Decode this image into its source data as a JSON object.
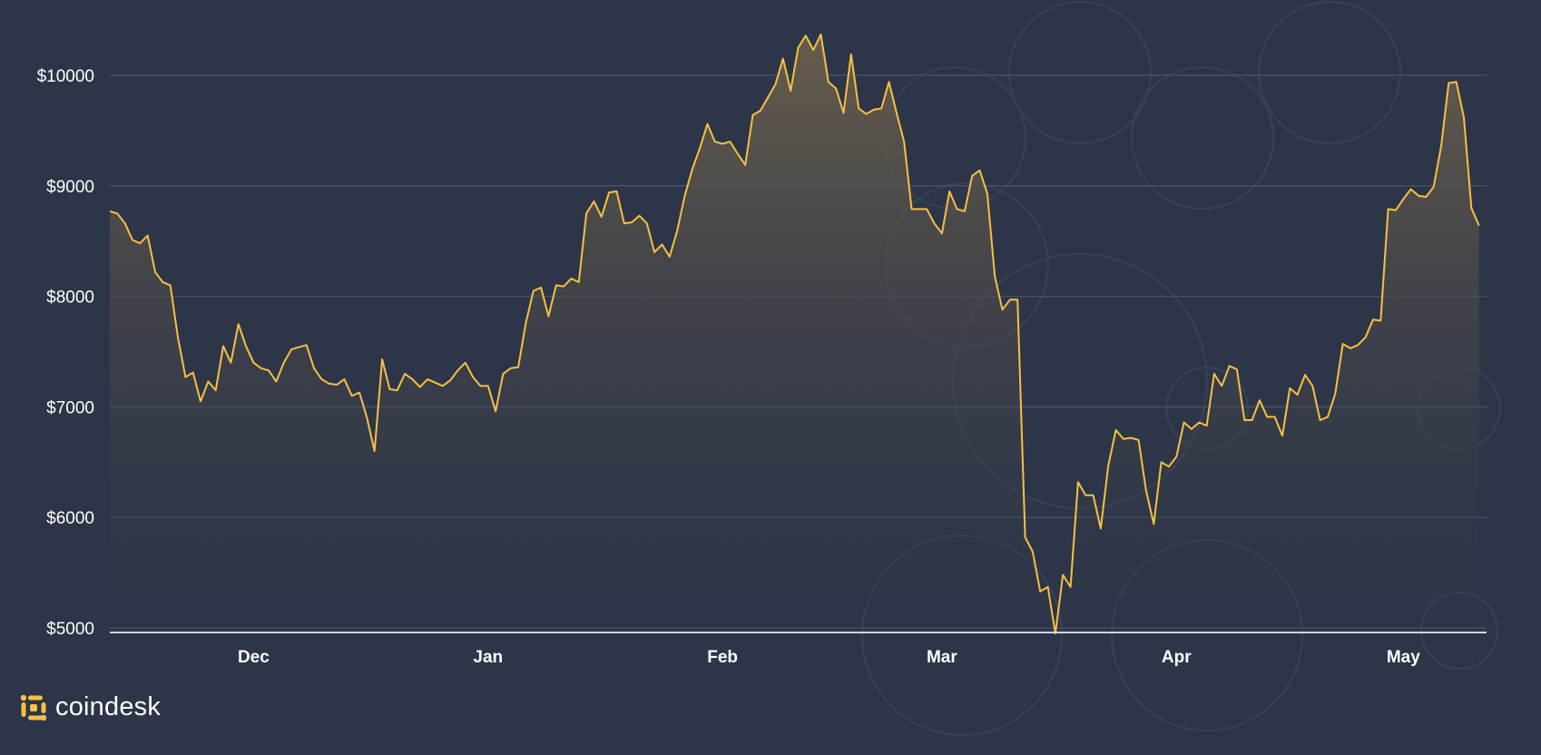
{
  "brand": {
    "name": "coindesk",
    "accent": "#f7c042"
  },
  "colors": {
    "background": "#2d3548",
    "line": "#f7c042",
    "grid": "#465066",
    "axis": "#d0d4dc"
  },
  "chart_data": {
    "type": "area",
    "title": "",
    "xlabel": "",
    "ylabel": "",
    "ylim": [
      5000,
      10400
    ],
    "yticks": [
      10000,
      9000,
      8000,
      7000,
      6000,
      5000
    ],
    "ytick_labels": [
      "$10000",
      "$9000",
      "$8000",
      "$7000",
      "$6000",
      "$5000"
    ],
    "xlim": [
      "2019-11-12",
      "2020-05-12"
    ],
    "xticks": [
      "2019-12-01",
      "2020-01-01",
      "2020-02-01",
      "2020-03-01",
      "2020-04-01",
      "2020-05-01"
    ],
    "xtick_labels": [
      "Dec",
      "Jan",
      "Feb",
      "Mar",
      "Apr",
      "May"
    ],
    "grid": true,
    "series": [
      {
        "start_date": "2019-11-12",
        "values": [
          8770,
          8750,
          8660,
          8510,
          8480,
          8550,
          8220,
          8130,
          8100,
          7630,
          7270,
          7310,
          7050,
          7230,
          7150,
          7550,
          7400,
          7750,
          7550,
          7400,
          7350,
          7330,
          7230,
          7400,
          7520,
          7540,
          7560,
          7350,
          7250,
          7210,
          7200,
          7250,
          7100,
          7130,
          6900,
          6600,
          7430,
          7160,
          7150,
          7300,
          7250,
          7180,
          7250,
          7220,
          7190,
          7240,
          7330,
          7400,
          7270,
          7190,
          7190,
          6960,
          7300,
          7350,
          7360,
          7760,
          8050,
          8080,
          7820,
          8100,
          8090,
          8160,
          8130,
          8750,
          8860,
          8720,
          8940,
          8950,
          8660,
          8670,
          8730,
          8660,
          8400,
          8470,
          8360,
          8590,
          8910,
          9150,
          9340,
          9560,
          9400,
          9380,
          9400,
          9290,
          9190,
          9640,
          9680,
          9800,
          9920,
          10150,
          9860,
          10250,
          10360,
          10230,
          10370,
          9940,
          9880,
          9660,
          10190,
          9700,
          9650,
          9690,
          9700,
          9940,
          9660,
          9400,
          8790,
          8790,
          8790,
          8660,
          8570,
          8950,
          8790,
          8770,
          9090,
          9140,
          8930,
          8180,
          7880,
          7970,
          7970,
          5820,
          5690,
          5330,
          5370,
          4950,
          5480,
          5370,
          6320,
          6200,
          6200,
          5900,
          6470,
          6790,
          6710,
          6720,
          6700,
          6240,
          5940,
          6500,
          6460,
          6550,
          6860,
          6800,
          6860,
          6830,
          7300,
          7190,
          7370,
          7340,
          6880,
          6880,
          7060,
          6910,
          6910,
          6740,
          7170,
          7110,
          7290,
          7190,
          6880,
          6910,
          7120,
          7570,
          7530,
          7560,
          7630,
          7790,
          7780,
          8790,
          8780,
          8880,
          8970,
          8910,
          8900,
          8990,
          9360,
          9930,
          9940,
          9620,
          8800,
          8640
        ]
      }
    ]
  }
}
